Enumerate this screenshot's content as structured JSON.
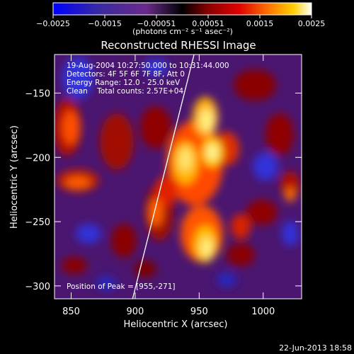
{
  "colorbar": {
    "ticks": [
      "-0.0025",
      "-0.0015",
      "-0.00051",
      "0.00051",
      "0.0015",
      "0.0025"
    ],
    "unit_label": "(photons cm⁻² s⁻¹ asec⁻²)",
    "colors": [
      "#0000ff",
      "#3a2aa0",
      "#6a2a8a",
      "#000000",
      "#8a0000",
      "#e00000",
      "#ff7a00",
      "#ffd000",
      "#ffffff"
    ]
  },
  "chart_data": {
    "type": "heatmap",
    "title": "Reconstructed RHESSI Image",
    "xlabel": "Heliocentric X (arcsec)",
    "ylabel": "Heliocentric Y (arcsec)",
    "xlim": [
      837,
      1030
    ],
    "ylim": [
      -310,
      -120
    ],
    "x_ticks": [
      850,
      900,
      950,
      1000
    ],
    "y_ticks": [
      -150,
      -200,
      -250,
      -300
    ],
    "limb_line": [
      [
        898,
        -310
      ],
      [
        946,
        -120
      ]
    ],
    "peak_position": [
      955,
      -271
    ],
    "info_lines": [
      "19-Aug-2004 10:27:50.000 to 10:31:44.000",
      "Detectors: 4F 5F 6F 7F 8F, Att 0",
      "Energy Range: 12.0 - 25.0 keV",
      "Clean    Total counts: 2.57E+04"
    ],
    "peak_label": "Position of Peak = [955,-271]"
  },
  "footer": {
    "date": "22-Jun-2013 18:58"
  }
}
